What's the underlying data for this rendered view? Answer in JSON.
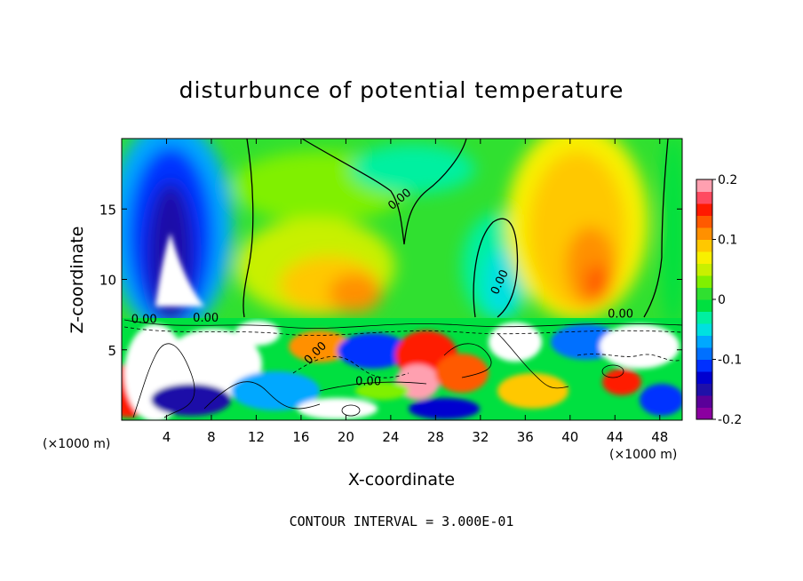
{
  "chart_data": {
    "type": "heatmap",
    "title": "disturbunce of potential temperature",
    "xlabel": "X-coordinate",
    "ylabel": "Z-coordinate",
    "x_unit_left": "(×1000 m)",
    "x_unit_right": "(×1000 m)",
    "xlim": [
      0,
      50
    ],
    "ylim": [
      0,
      20
    ],
    "x_ticks": [
      4,
      8,
      12,
      16,
      20,
      24,
      28,
      32,
      36,
      40,
      44,
      48
    ],
    "x_tick_labels": [
      "4",
      "8",
      "12",
      "16",
      "20",
      "24",
      "28",
      "32",
      "36",
      "40",
      "44",
      "48"
    ],
    "y_ticks": [
      5,
      10,
      15
    ],
    "y_tick_labels": [
      "5",
      "10",
      "15"
    ],
    "colorbar": {
      "range": [
        -0.2,
        0.2
      ],
      "tick_values": [
        0.2,
        0.1,
        0,
        -0.1,
        -0.2
      ],
      "tick_labels": [
        "0.2",
        "0.1",
        "0",
        "-0.1",
        "-0.2"
      ],
      "colors": [
        "#8b00a0",
        "#5a0099",
        "#1f10a8",
        "#0000d0",
        "#0030ff",
        "#0070ff",
        "#00a8ff",
        "#00e0e0",
        "#00f0a0",
        "#00e040",
        "#30e030",
        "#80f000",
        "#c8f000",
        "#f8f000",
        "#ffc800",
        "#ff9000",
        "#ff5a00",
        "#ff1a00",
        "#ff4a60",
        "#ffa0b0"
      ]
    },
    "contour_labels": [
      {
        "text": "0.00",
        "x": 25.0,
        "z": 15.5,
        "angle": -40
      },
      {
        "text": "0.00",
        "x": 34.0,
        "z": 9.7,
        "angle": -65
      },
      {
        "text": "0.00",
        "x": 44.5,
        "z": 7.3,
        "angle": 0
      },
      {
        "text": "0.00",
        "x": 17.5,
        "z": 4.6,
        "angle": -45
      },
      {
        "text": "0.00",
        "x": 22.0,
        "z": 2.5,
        "angle": 0
      },
      {
        "text": "0.00",
        "x": 7.5,
        "z": 7.0,
        "angle": 0
      },
      {
        "text": "0.00",
        "x": 2.0,
        "z": 6.9,
        "angle": 0
      }
    ],
    "contour_interval_text": "CONTOUR INTERVAL = 3.000E-01"
  }
}
